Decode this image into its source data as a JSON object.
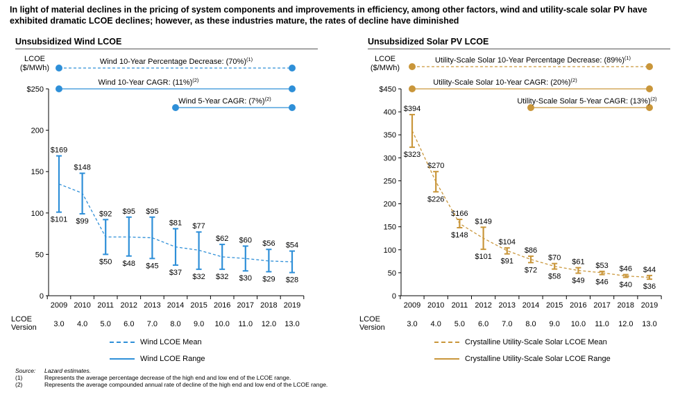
{
  "headline": "In light of material declines in the pricing of system components and improvements in efficiency, among other factors, wind and utility-scale solar PV have exhibited dramatic LCOE declines; however, as these industries mature, the rates of decline have diminished",
  "version_label": [
    "LCOE",
    "Version"
  ],
  "versions": [
    "3.0",
    "4.0",
    "5.0",
    "6.0",
    "7.0",
    "8.0",
    "9.0",
    "10.0",
    "11.0",
    "12.0",
    "13.0"
  ],
  "footnotes": [
    {
      "key": "Source:",
      "text": "Lazard estimates.",
      "italic": true
    },
    {
      "key": "(1)",
      "text": "Represents the average percentage decrease of the high end and low end of the LCOE range."
    },
    {
      "key": "(2)",
      "text": "Represents the average compounded annual rate of decline of the high end and low end of the LCOE range."
    }
  ],
  "chart_data": [
    {
      "type": "line",
      "title": "Unsubsidized Wind LCOE",
      "ylabel": [
        "LCOE",
        "($/MWh)"
      ],
      "color": "#2e8fd8",
      "ylim": [
        0,
        250
      ],
      "yticks": [
        0,
        50,
        100,
        150,
        200,
        250
      ],
      "ytick_labels": [
        "0",
        "50",
        "100",
        "150",
        "200",
        "$250"
      ],
      "y_axis_top_tick_label": "$250",
      "categories": [
        "2009",
        "2010",
        "2011",
        "2012",
        "2013",
        "2014",
        "2015",
        "2016",
        "2017",
        "2018",
        "2019"
      ],
      "series": [
        {
          "name": "Wind LCOE Mean",
          "values": [
            135,
            124,
            71,
            71,
            70,
            59,
            55,
            47,
            45,
            42,
            41
          ]
        },
        {
          "name": "Wind LCOE Range",
          "high": [
            169,
            148,
            92,
            95,
            95,
            81,
            77,
            62,
            60,
            56,
            54
          ],
          "low": [
            101,
            99,
            50,
            48,
            45,
            37,
            32,
            32,
            30,
            29,
            28
          ]
        }
      ],
      "high_labels": [
        "$169",
        "$148",
        "$92",
        "$95",
        "$95",
        "$81",
        "$77",
        "$62",
        "$60",
        "$56",
        "$54"
      ],
      "low_labels": [
        "$101",
        "$99",
        "$50",
        "$48",
        "$45",
        "$37",
        "$32",
        "$32",
        "$30",
        "$29",
        "$28"
      ],
      "annotations": [
        {
          "text": "Wind 10-Year Percentage Decrease: (70%)",
          "sup": "(1)",
          "from": "2009",
          "to": "2019",
          "style": "dashed"
        },
        {
          "text": "Wind 10-Year CAGR: (11%)",
          "sup": "(2)",
          "from": "2009",
          "to": "2019",
          "style": "solid"
        },
        {
          "text": "Wind 5-Year CAGR: (7%)",
          "sup": "(2)",
          "from": "2014",
          "to": "2019",
          "style": "solid"
        }
      ]
    },
    {
      "type": "line",
      "title": "Unsubsidized Solar PV LCOE",
      "ylabel": [
        "LCOE",
        "($/MWh)"
      ],
      "color": "#c9963a",
      "ylim": [
        0,
        450
      ],
      "yticks": [
        0,
        50,
        100,
        150,
        200,
        250,
        300,
        350,
        400,
        450
      ],
      "ytick_labels": [
        "0",
        "50",
        "100",
        "150",
        "200",
        "250",
        "300",
        "350",
        "400",
        "$450"
      ],
      "categories": [
        "2009",
        "2010",
        "2011",
        "2012",
        "2013",
        "2014",
        "2015",
        "2016",
        "2017",
        "2018",
        "2019"
      ],
      "series": [
        {
          "name": "Crystalline Utility-Scale Solar LCOE Mean",
          "values": [
            359,
            248,
            157,
            125,
            98,
            79,
            64,
            55,
            50,
            43,
            40
          ]
        },
        {
          "name": "Crystalline Utility-Scale Solar LCOE Range",
          "high": [
            394,
            270,
            166,
            149,
            104,
            86,
            70,
            61,
            53,
            46,
            44
          ],
          "low": [
            323,
            226,
            148,
            101,
            91,
            72,
            58,
            49,
            46,
            40,
            36
          ]
        }
      ],
      "high_labels": [
        "$394",
        "$270",
        "$166",
        "$149",
        "$104",
        "$86",
        "$70",
        "$61",
        "$53",
        "$46",
        "$44"
      ],
      "low_labels": [
        "$323",
        "$226",
        "$148",
        "$101",
        "$91",
        "$72",
        "$58",
        "$49",
        "$46",
        "$40",
        "$36"
      ],
      "annotations": [
        {
          "text": "Utility-Scale Solar 10-Year Percentage Decrease: (89%)",
          "sup": "(1)",
          "from": "2009",
          "to": "2019",
          "style": "dashed"
        },
        {
          "text": "Utility-Scale Solar 10-Year CAGR: (20%)",
          "sup": "(2)",
          "from": "2009",
          "to": "2019",
          "style": "solid"
        },
        {
          "text": "Utility-Scale Solar 5-Year CAGR: (13%)",
          "sup": "(2)",
          "from": "2014",
          "to": "2019",
          "style": "solid"
        }
      ]
    }
  ]
}
